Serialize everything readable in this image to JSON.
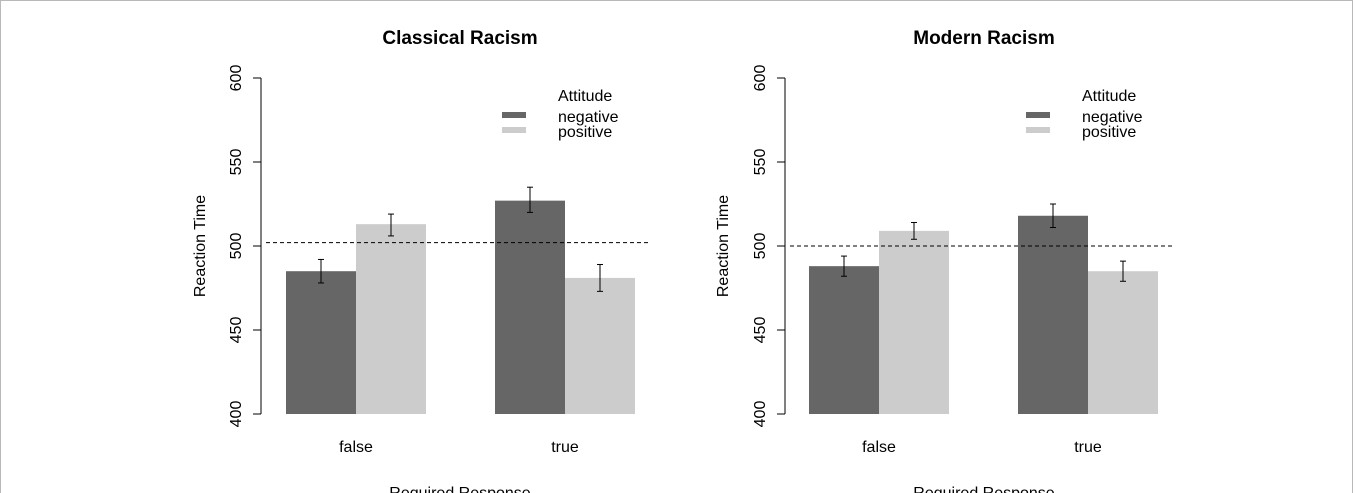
{
  "chart_data": [
    {
      "type": "bar",
      "title": "Classical Racism",
      "xlabel": "Required Response",
      "ylabel": "Reaction Time",
      "ylim": [
        400,
        600
      ],
      "yticks": [
        "400",
        "450",
        "500",
        "550",
        "600"
      ],
      "categories": [
        "false",
        "true"
      ],
      "legend_title": "Attitude",
      "legend_position": "top-right",
      "reference_line": 502,
      "series": [
        {
          "name": "negative",
          "color": "#666666",
          "values": [
            485,
            527
          ],
          "error_low": [
            478,
            520
          ],
          "error_high": [
            492,
            535
          ]
        },
        {
          "name": "positive",
          "color": "#cccccc",
          "values": [
            513,
            481
          ],
          "error_low": [
            506,
            473
          ],
          "error_high": [
            519,
            489
          ]
        }
      ]
    },
    {
      "type": "bar",
      "title": "Modern Racism",
      "xlabel": "Required Response",
      "ylabel": "Reaction Time",
      "ylim": [
        400,
        600
      ],
      "yticks": [
        "400",
        "450",
        "500",
        "550",
        "600"
      ],
      "categories": [
        "false",
        "true"
      ],
      "legend_title": "Attitude",
      "legend_position": "top-right",
      "reference_line": 500,
      "series": [
        {
          "name": "negative",
          "color": "#666666",
          "values": [
            488,
            518
          ],
          "error_low": [
            482,
            511
          ],
          "error_high": [
            494,
            525
          ]
        },
        {
          "name": "positive",
          "color": "#cccccc",
          "values": [
            509,
            485
          ],
          "error_low": [
            504,
            479
          ],
          "error_high": [
            514,
            491
          ]
        }
      ]
    }
  ]
}
